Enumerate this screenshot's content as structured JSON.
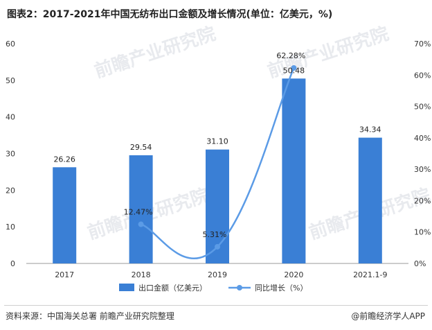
{
  "title": "图表2：2017-2021年中国无纺布出口金额及增长情况(单位：亿美元，%)",
  "source": "资料来源：中国海关总署 前瞻产业研究院整理",
  "brand": "@前瞻经济学人APP",
  "watermark": "前瞻产业研究院",
  "colors": {
    "bar": "#3a7fd5",
    "line": "#5b9be6",
    "axis": "#999999"
  },
  "chart_data": {
    "type": "bar",
    "categories": [
      "2017",
      "2018",
      "2019",
      "2020",
      "2021.1-9"
    ],
    "series": [
      {
        "name": "出口金额（亿美元）",
        "type": "bar",
        "axis": "left",
        "values": [
          26.26,
          29.54,
          31.1,
          50.48,
          34.34
        ],
        "labels": [
          "26.26",
          "29.54",
          "31.10",
          "50.48",
          "34.34"
        ]
      },
      {
        "name": "同比增长（%）",
        "type": "line",
        "axis": "right",
        "values": [
          null,
          12.47,
          5.31,
          62.28,
          null
        ],
        "labels": [
          "",
          "12.47%",
          "5.31%",
          "62.28%",
          ""
        ]
      }
    ],
    "y_left": {
      "ylim": [
        0,
        60
      ],
      "ticks": [
        "0",
        "10",
        "20",
        "30",
        "40",
        "50",
        "60"
      ]
    },
    "y_right": {
      "ylim": [
        0,
        70
      ],
      "ticks": [
        "0%",
        "10%",
        "20%",
        "30%",
        "40%",
        "50%",
        "60%",
        "70%"
      ]
    },
    "legend": "bottom",
    "grid": false
  }
}
